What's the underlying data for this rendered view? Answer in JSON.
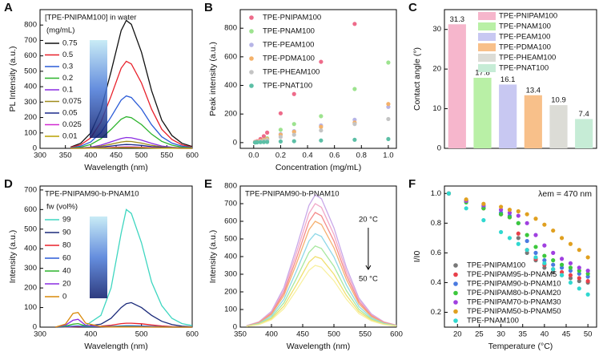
{
  "chart_data": [
    {
      "type": "line",
      "panel": "A",
      "title": "[TPE-PNIPAM100] in water",
      "legend_title": "(mg/mL)",
      "legend": "upper left",
      "x_label": "Wavelength (nm)",
      "y_label": "PL Intensity (a.u.)",
      "xlim": [
        300,
        600
      ],
      "xticks": [
        300,
        350,
        400,
        450,
        500,
        550,
        600
      ],
      "ylim": [
        0,
        900
      ],
      "yticks": [
        0,
        100,
        200,
        300,
        400,
        500,
        600,
        700,
        800
      ],
      "x": [
        360,
        380,
        400,
        420,
        440,
        460,
        470,
        480,
        500,
        520,
        540,
        560,
        580,
        600
      ],
      "series": [
        {
          "name": "0.75",
          "color": "#111111",
          "values": [
            8,
            33,
            100,
            249,
            498,
            764,
            830,
            805,
            623,
            374,
            183,
            83,
            33,
            12
          ]
        },
        {
          "name": "0.5",
          "color": "#e8202a",
          "values": [
            6,
            23,
            68,
            170,
            339,
            520,
            565,
            548,
            424,
            254,
            124,
            57,
            23,
            8
          ]
        },
        {
          "name": "0.3",
          "color": "#2a5bd7",
          "values": [
            3,
            14,
            41,
            102,
            204,
            313,
            340,
            330,
            255,
            153,
            75,
            34,
            14,
            5
          ]
        },
        {
          "name": "0.2",
          "color": "#2bb32b",
          "values": [
            2,
            8,
            25,
            62,
            123,
            189,
            205,
            199,
            154,
            92,
            45,
            21,
            8,
            3
          ]
        },
        {
          "name": "0.1",
          "color": "#8a2be2",
          "values": [
            1,
            3,
            8,
            21,
            42,
            64,
            70,
            68,
            53,
            32,
            15,
            7,
            3,
            1
          ]
        },
        {
          "name": "0.075",
          "color": "#a08c1c",
          "values": [
            0,
            2,
            5,
            14,
            27,
            41,
            45,
            44,
            34,
            20,
            10,
            5,
            2,
            1
          ]
        },
        {
          "name": "0.05",
          "color": "#1b2a8c",
          "values": [
            0,
            1,
            3,
            8,
            15,
            23,
            25,
            24,
            19,
            11,
            6,
            3,
            1,
            0
          ]
        },
        {
          "name": "0.025",
          "color": "#d12ad1",
          "values": [
            0,
            0,
            1,
            3,
            6,
            9,
            10,
            10,
            8,
            5,
            2,
            1,
            0,
            0
          ]
        },
        {
          "name": "0.01",
          "color": "#b8a000",
          "values": [
            0,
            0,
            1,
            2,
            3,
            5,
            5,
            5,
            4,
            2,
            1,
            1,
            0,
            0
          ]
        }
      ]
    },
    {
      "type": "scatter",
      "panel": "B",
      "legend": "upper left",
      "x_label": "Concentration (mg/mL)",
      "y_label": "Peak intensity (a.u.)",
      "xlim": [
        -0.1,
        1.06
      ],
      "xticks": [
        {
          "value": 0,
          "label": "0.0"
        },
        0.2,
        0.4,
        0.6,
        0.8,
        {
          "value": 1,
          "label": "1.0"
        }
      ],
      "ylim": [
        -40,
        930
      ],
      "yticks": [
        0,
        200,
        400,
        600,
        800
      ],
      "x": [
        0.01,
        0.025,
        0.05,
        0.075,
        0.1,
        0.2,
        0.3,
        0.5,
        0.75,
        1.0
      ],
      "series": [
        {
          "name": "TPE-PNIPAM100",
          "color": "#ee6b8a",
          "values": [
            5,
            10,
            25,
            45,
            70,
            205,
            340,
            565,
            830,
            null
          ]
        },
        {
          "name": "TPE-PNAM100",
          "color": "#9de38f",
          "values": [
            3,
            6,
            12,
            20,
            30,
            90,
            130,
            185,
            375,
            560
          ]
        },
        {
          "name": "TPE-PEAM100",
          "color": "#b6b4e6",
          "values": [
            2,
            5,
            10,
            15,
            20,
            60,
            80,
            120,
            160,
            250
          ]
        },
        {
          "name": "TPE-PDMA100",
          "color": "#f4b16a",
          "values": [
            3,
            6,
            12,
            18,
            25,
            55,
            75,
            110,
            140,
            270
          ]
        },
        {
          "name": "TPE-PHEAM100",
          "color": "#c4c4c4",
          "values": [
            2,
            4,
            8,
            12,
            18,
            40,
            55,
            85,
            130,
            165
          ]
        },
        {
          "name": "TPE-PNAT100",
          "color": "#5cbfa6",
          "values": [
            1,
            2,
            3,
            4,
            5,
            8,
            10,
            15,
            20,
            25
          ]
        }
      ]
    },
    {
      "type": "bar",
      "panel": "C",
      "legend": "upper right",
      "y_label": "Contact angle (°)",
      "ylim": [
        0,
        35
      ],
      "yticks": [
        0,
        10,
        20,
        30
      ],
      "categories": [
        "TPE-PNIPAM100",
        "TPE-PNAM100",
        "TPE-PEAM100",
        "TPE-PDMA100",
        "TPE-PHEAM100",
        "TPE-PNAT100"
      ],
      "values": [
        31.3,
        17.8,
        16.1,
        13.4,
        10.9,
        7.4
      ],
      "colors": [
        "#f6b6cc",
        "#b9f0a6",
        "#c8c8f2",
        "#f8c08a",
        "#dcdcd6",
        "#c6ecd6"
      ]
    },
    {
      "type": "line",
      "panel": "D",
      "title": "TPE-PNIPAM90-b-PNAM10",
      "legend_title": "fw (vol%)",
      "legend": "upper left",
      "x_label": "Wavelength (nm)",
      "y_label": "Intensity (a.u.)",
      "xlim": [
        300,
        600
      ],
      "xticks": [
        300,
        400,
        500,
        600
      ],
      "ylim": [
        0,
        720
      ],
      "yticks": [
        0,
        100,
        200,
        300,
        400,
        500,
        600,
        700
      ],
      "x": [
        330,
        350,
        365,
        375,
        390,
        420,
        440,
        460,
        470,
        480,
        500,
        520,
        540,
        560,
        580,
        600
      ],
      "series": [
        {
          "name": "99",
          "color": "#3ed6c0",
          "values": [
            0,
            1,
            2,
            3,
            8,
            60,
            200,
            480,
            600,
            580,
            430,
            230,
            110,
            45,
            18,
            8
          ]
        },
        {
          "name": "90",
          "color": "#1b2a7a",
          "values": [
            0,
            1,
            2,
            3,
            4,
            15,
            45,
            100,
            120,
            125,
            100,
            60,
            30,
            13,
            5,
            2
          ]
        },
        {
          "name": "80",
          "color": "#e8202a",
          "values": [
            0,
            1,
            2,
            3,
            3,
            5,
            10,
            18,
            20,
            20,
            17,
            11,
            6,
            3,
            1,
            0
          ]
        },
        {
          "name": "60",
          "color": "#2a5bd7",
          "values": [
            0,
            2,
            5,
            6,
            3,
            3,
            4,
            6,
            7,
            7,
            6,
            4,
            2,
            1,
            0,
            0
          ]
        },
        {
          "name": "40",
          "color": "#2bb32b",
          "values": [
            0,
            5,
            15,
            18,
            6,
            2,
            2,
            3,
            3,
            3,
            2,
            2,
            1,
            0,
            0,
            0
          ]
        },
        {
          "name": "20",
          "color": "#8a2be2",
          "values": [
            0,
            10,
            35,
            40,
            10,
            2,
            1,
            1,
            1,
            1,
            1,
            1,
            0,
            0,
            0,
            0
          ]
        },
        {
          "name": "0",
          "color": "#d98a0a",
          "values": [
            0,
            15,
            70,
            75,
            20,
            3,
            1,
            1,
            1,
            1,
            1,
            0,
            0,
            0,
            0,
            0
          ]
        }
      ]
    },
    {
      "type": "line",
      "panel": "E",
      "title": "TPE-PNIPAM90-b-PNAM10",
      "annotations": [
        "20 °C",
        "50 °C"
      ],
      "x_label": "Wavelength (nm)",
      "y_label": "Intensity (a.u.)",
      "xlim": [
        350,
        600
      ],
      "xticks": [
        350,
        400,
        450,
        500,
        550,
        600
      ],
      "ylim": [
        0,
        800
      ],
      "yticks": [
        0,
        100,
        200,
        300,
        400,
        500,
        600,
        700,
        800
      ],
      "x": [
        360,
        380,
        400,
        420,
        440,
        460,
        470,
        480,
        500,
        520,
        540,
        560,
        580,
        600
      ],
      "series": [
        {
          "color": "#c9a8e8",
          "values": [
            8,
            30,
            90,
            225,
            450,
            690,
            750,
            728,
            563,
            338,
            165,
            75,
            30,
            11
          ]
        },
        {
          "color": "#f2a8c8",
          "values": [
            7,
            28,
            84,
            210,
            420,
            644,
            700,
            679,
            525,
            315,
            154,
            70,
            28,
            11
          ]
        },
        {
          "color": "#f48a8a",
          "values": [
            7,
            26,
            78,
            195,
            390,
            598,
            650,
            631,
            488,
            293,
            143,
            65,
            26,
            10
          ]
        },
        {
          "color": "#f6b070",
          "values": [
            6,
            24,
            72,
            180,
            360,
            552,
            600,
            582,
            450,
            270,
            132,
            60,
            24,
            9
          ]
        },
        {
          "color": "#8fd8e8",
          "values": [
            5,
            21,
            64,
            159,
            318,
            488,
            530,
            514,
            398,
            239,
            117,
            53,
            21,
            8
          ]
        },
        {
          "color": "#a8e8a0",
          "values": [
            5,
            18,
            55,
            138,
            276,
            423,
            460,
            446,
            345,
            207,
            101,
            46,
            18,
            7
          ]
        },
        {
          "color": "#f0e070",
          "values": [
            4,
            16,
            48,
            120,
            240,
            368,
            400,
            388,
            300,
            180,
            88,
            40,
            16,
            6
          ]
        },
        {
          "color": "#f8f0a0",
          "values": [
            4,
            14,
            42,
            105,
            210,
            322,
            350,
            340,
            263,
            158,
            77,
            35,
            14,
            5
          ]
        }
      ]
    },
    {
      "type": "scatter",
      "panel": "F",
      "legend": "lower left",
      "annotations": [
        "λem = 470 nm"
      ],
      "x_label": "Temperature (°C)",
      "y_label": "I/I0",
      "xlim": [
        17,
        52
      ],
      "xticks": [
        20,
        25,
        30,
        35,
        40,
        45,
        50
      ],
      "ylim": [
        0.1,
        1.05
      ],
      "yticks": [
        0.2,
        0.4,
        0.6,
        0.8,
        {
          "value": 1,
          "label": "1.0"
        }
      ],
      "x": [
        18,
        22,
        26,
        30,
        32,
        34,
        36,
        38,
        40,
        42,
        44,
        46,
        48,
        50
      ],
      "series": [
        {
          "name": "TPE-PNIPAM100",
          "color": "#777777",
          "values": [
            1,
            0.95,
            0.9,
            0.86,
            0.84,
            0.7,
            0.6,
            0.55,
            0.5,
            0.47,
            0.45,
            0.43,
            0.41,
            0.4
          ]
        },
        {
          "name": "TPE-PNIPAM95-b-PNAM5",
          "color": "#e8404a",
          "values": [
            1,
            0.95,
            0.9,
            0.86,
            0.84,
            0.73,
            0.62,
            0.56,
            0.52,
            0.49,
            0.47,
            0.45,
            0.43,
            0.41
          ]
        },
        {
          "name": "TPE-PNIPAM90-b-PNAM10",
          "color": "#4a7ae0",
          "values": [
            1,
            0.95,
            0.91,
            0.87,
            0.85,
            0.8,
            0.68,
            0.6,
            0.55,
            0.52,
            0.5,
            0.48,
            0.46,
            0.44
          ]
        },
        {
          "name": "TPE-PNIPAM80-b-PNAM20",
          "color": "#3cc83c",
          "values": [
            1,
            0.94,
            0.9,
            0.86,
            0.84,
            0.8,
            0.72,
            0.64,
            0.58,
            0.55,
            0.52,
            0.5,
            0.48,
            0.46
          ]
        },
        {
          "name": "TPE-PNIPAM70-b-PNAM30",
          "color": "#a040e0",
          "values": [
            1,
            0.95,
            0.92,
            0.89,
            0.87,
            0.85,
            0.8,
            0.72,
            0.65,
            0.6,
            0.56,
            0.53,
            0.5,
            0.48
          ]
        },
        {
          "name": "TPE-PNIPAM50-b-PNAM50",
          "color": "#e0a020",
          "values": [
            1,
            0.96,
            0.93,
            0.91,
            0.89,
            0.88,
            0.86,
            0.83,
            0.79,
            0.75,
            0.7,
            0.66,
            0.62,
            0.57
          ]
        },
        {
          "name": "TPE-PNAM100",
          "color": "#30d8d0",
          "values": [
            1,
            0.9,
            0.82,
            0.74,
            0.7,
            0.66,
            0.62,
            0.57,
            0.53,
            0.49,
            0.45,
            0.4,
            0.36,
            0.32
          ]
        }
      ]
    }
  ]
}
